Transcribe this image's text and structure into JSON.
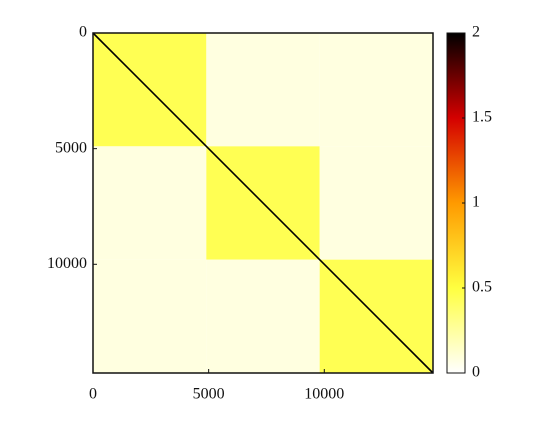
{
  "chart_data": {
    "type": "heatmap",
    "x": [
      0,
      4900,
      9800,
      14700
    ],
    "z": [
      [
        0.45,
        0.08,
        0.08
      ],
      [
        0.08,
        0.45,
        0.08
      ],
      [
        0.08,
        0.08,
        0.45
      ]
    ],
    "diagonal_value": 2,
    "xlim": [
      0,
      14700
    ],
    "ylim": [
      0,
      14700
    ],
    "xticks": [
      0,
      5000,
      10000
    ],
    "yticks": [
      0,
      5000,
      10000
    ],
    "clim": [
      0,
      2
    ],
    "cticks": [
      0,
      0.5,
      1,
      1.5,
      2
    ],
    "colormap": [
      "#ffffff",
      "#ffff40",
      "#ff9a00",
      "#d40000",
      "#000000"
    ]
  }
}
